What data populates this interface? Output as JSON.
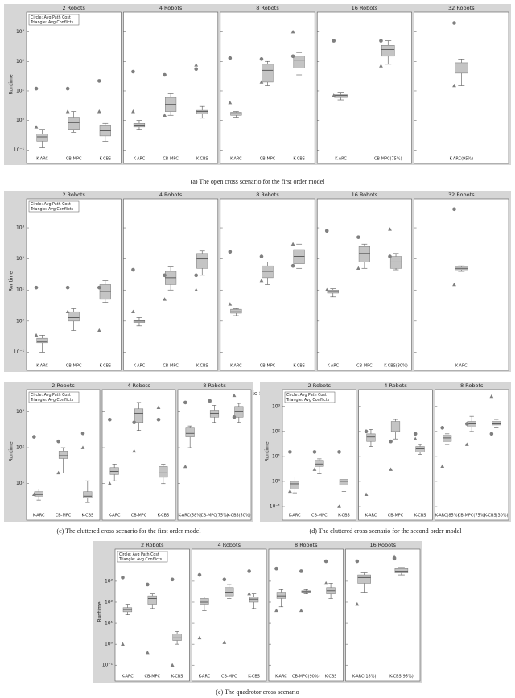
{
  "chart_data": [
    {
      "type": "box",
      "caption": "(a) The open cross scenario for the first order model",
      "ylabel": "Runtime",
      "legend": [
        "Circle: Avg Path Cost",
        "Triangle: Avg Conflicts"
      ],
      "log_scale": true,
      "color": "#c4c4c4",
      "marker_color": "#7f7f7f",
      "ylim": [
        0.085,
        3200
      ],
      "yticks": [
        {
          "value": 0.1,
          "label": "10⁻¹"
        },
        {
          "value": 1,
          "label": "10⁰"
        },
        {
          "value": 10,
          "label": "10¹"
        },
        {
          "value": 100,
          "label": "10²"
        },
        {
          "value": 1000,
          "label": "10³"
        }
      ],
      "panels": [
        {
          "title": "2 Robots",
          "categories": [
            "K-ARC",
            "CB-MPC",
            "K-CBS"
          ],
          "boxes": [
            [
              0.12,
              0.2,
              0.28,
              0.35,
              0.5
            ],
            [
              0.4,
              0.5,
              0.85,
              1.3,
              2
            ],
            [
              0.2,
              0.3,
              0.45,
              0.7,
              0.8
            ]
          ],
          "circles": [
            12,
            12,
            22
          ],
          "triangles": [
            0.6,
            2,
            2
          ]
        },
        {
          "title": "4 Robots",
          "categories": [
            "K-ARC",
            "CB-MPC",
            "K-CBS"
          ],
          "boxes": [
            [
              0.5,
              0.6,
              0.7,
              0.8,
              1
            ],
            [
              1.5,
              2,
              3.5,
              6,
              8
            ],
            [
              1.2,
              1.7,
              2,
              2.2,
              3
            ]
          ],
          "circles": [
            45,
            35,
            55
          ],
          "triangles": [
            2,
            1.5,
            75
          ]
        },
        {
          "title": "8 Robots",
          "categories": [
            "K-ARC",
            "CB-MPC",
            "K-CBS"
          ],
          "boxes": [
            [
              1.3,
              1.5,
              1.7,
              1.9,
              2
            ],
            [
              15,
              20,
              50,
              80,
              100
            ],
            [
              35,
              60,
              110,
              150,
              200
            ]
          ],
          "circles": [
            130,
            120,
            150
          ],
          "triangles": [
            4,
            20,
            1000
          ]
        },
        {
          "title": "16 Robots",
          "categories": [
            "K-ARC",
            "CB-MPC(75%)"
          ],
          "boxes": [
            [
              5,
              6,
              7,
              7.5,
              9
            ],
            [
              80,
              150,
              250,
              350,
              500
            ]
          ],
          "circles": [
            500,
            500
          ],
          "triangles": [
            7,
            70
          ]
        },
        {
          "title": "32 Robots",
          "categories": [
            "K-ARC(95%)"
          ],
          "boxes": [
            [
              15,
              40,
              60,
              90,
              120
            ]
          ],
          "circles": [
            2000
          ],
          "triangles": [
            15
          ]
        }
      ]
    },
    {
      "type": "box",
      "caption": "(b) The open cross scenario for the second order model",
      "ylabel": "Runtime",
      "legend": [
        "Circle: Avg Path Cost",
        "Triangle: Avg Conflicts"
      ],
      "log_scale": true,
      "color": "#c4c4c4",
      "marker_color": "#7f7f7f",
      "ylim": [
        0.06,
        6000
      ],
      "yticks": [
        {
          "value": 0.1,
          "label": "10⁻¹"
        },
        {
          "value": 1,
          "label": "10⁰"
        },
        {
          "value": 10,
          "label": "10¹"
        },
        {
          "value": 100,
          "label": "10²"
        },
        {
          "value": 1000,
          "label": "10³"
        }
      ],
      "panels": [
        {
          "title": "2 Robots",
          "categories": [
            "K-ARC",
            "CB-MPC",
            "K-CBS"
          ],
          "boxes": [
            [
              0.1,
              0.2,
              0.22,
              0.28,
              0.35
            ],
            [
              0.5,
              1,
              1.3,
              2,
              2.5
            ],
            [
              4,
              5,
              9,
              15,
              20
            ]
          ],
          "circles": [
            12,
            12,
            12
          ],
          "triangles": [
            0.35,
            2,
            0.5
          ]
        },
        {
          "title": "4 Robots",
          "categories": [
            "K-ARC",
            "CB-MPC",
            "K-CBS"
          ],
          "boxes": [
            [
              0.7,
              0.9,
              1,
              1.1,
              1.3
            ],
            [
              10,
              15,
              25,
              40,
              55
            ],
            [
              30,
              50,
              100,
              150,
              180
            ]
          ],
          "circles": [
            45,
            30,
            30
          ],
          "triangles": [
            2,
            5,
            10
          ]
        },
        {
          "title": "8 Robots",
          "categories": [
            "K-ARC",
            "CB-MPC",
            "K-CBS"
          ],
          "boxes": [
            [
              1.5,
              1.8,
              2,
              2.4,
              2.5
            ],
            [
              15,
              25,
              40,
              60,
              80
            ],
            [
              50,
              70,
              120,
              200,
              300
            ]
          ],
          "circles": [
            170,
            120,
            60
          ],
          "triangles": [
            3.5,
            20,
            300
          ]
        },
        {
          "title": "16 Robots",
          "categories": [
            "K-ARC",
            "CB-MPC",
            "K-CBS(30%)"
          ],
          "boxes": [
            [
              6,
              8,
              9,
              10,
              11
            ],
            [
              50,
              80,
              150,
              250,
              300
            ],
            [
              45,
              50,
              80,
              120,
              150
            ]
          ],
          "circles": [
            800,
            500,
            120
          ],
          "triangles": [
            10,
            50,
            900
          ]
        },
        {
          "title": "32 Robots",
          "categories": [
            "K-ARC"
          ],
          "boxes": [
            [
              40,
              45,
              50,
              55,
              60
            ]
          ],
          "circles": [
            4000
          ],
          "triangles": [
            15
          ]
        }
      ]
    },
    {
      "type": "box",
      "caption": "(c) The cluttered cross scenario for the first order model",
      "ylabel": "Runtime",
      "legend": [
        "Circle: Avg Path Cost",
        "Triangle: Avg Conflicts"
      ],
      "log_scale": true,
      "color": "#c4c4c4",
      "marker_color": "#7f7f7f",
      "ylim": [
        2,
        3000
      ],
      "yticks": [
        {
          "value": 10,
          "label": "10¹"
        },
        {
          "value": 100,
          "label": "10²"
        },
        {
          "value": 1000,
          "label": "10³"
        }
      ],
      "panels": [
        {
          "title": "2 Robots",
          "categories": [
            "K-ARC",
            "CB-MPC",
            "K-CBS"
          ],
          "boxes": [
            [
              3.5,
              4.5,
              5,
              6,
              7
            ],
            [
              20,
              50,
              60,
              80,
              100
            ],
            [
              3,
              4,
              4.5,
              6,
              12
            ]
          ],
          "circles": [
            200,
            150,
            250
          ],
          "triangles": [
            5,
            20,
            100
          ]
        },
        {
          "title": "4 Robots",
          "categories": [
            "K-ARC",
            "CB-MPC",
            "K-CBS"
          ],
          "boxes": [
            [
              12,
              18,
              22,
              28,
              35
            ],
            [
              300,
              500,
              900,
              1200,
              1800
            ],
            [
              10,
              15,
              20,
              30,
              35
            ]
          ],
          "circles": [
            600,
            500,
            600
          ],
          "triangles": [
            10,
            80,
            1300
          ]
        },
        {
          "title": "8 Robots",
          "categories": [
            "K-ARC(58%)",
            "CB-MPC(75%)",
            "K-CBS(50%)"
          ],
          "boxes": [
            [
              100,
              200,
              250,
              350,
              400
            ],
            [
              500,
              700,
              900,
              1100,
              1500
            ],
            [
              500,
              700,
              1000,
              1400,
              1700
            ]
          ],
          "circles": [
            1800,
            2000,
            700
          ],
          "triangles": [
            30,
            2000,
            2800
          ]
        }
      ]
    },
    {
      "type": "box",
      "caption": "(d) The cluttered cross scenario for the second order model",
      "ylabel": "Runtime",
      "legend": [
        "Circle: Avg Path Cost",
        "Triangle: Avg Conflicts"
      ],
      "log_scale": true,
      "color": "#c4c4c4",
      "marker_color": "#7f7f7f",
      "ylim": [
        0.08,
        3000
      ],
      "yticks": [
        {
          "value": 0.1,
          "label": "10⁻¹"
        },
        {
          "value": 1,
          "label": "10⁰"
        },
        {
          "value": 10,
          "label": "10¹"
        },
        {
          "value": 100,
          "label": "10²"
        },
        {
          "value": 1000,
          "label": "10³"
        }
      ],
      "panels": [
        {
          "title": "2 Robots",
          "categories": [
            "K-ARC",
            "CB-MPC",
            "K-CBS"
          ],
          "boxes": [
            [
              0.35,
              0.5,
              0.8,
              1,
              1.5
            ],
            [
              2,
              4,
              5,
              7,
              8
            ],
            [
              0.4,
              0.7,
              1,
              1.2,
              1.5
            ]
          ],
          "circles": [
            15,
            15,
            15
          ],
          "triangles": [
            0.4,
            3,
            0.1
          ]
        },
        {
          "title": "4 Robots",
          "categories": [
            "K-ARC",
            "CB-MPC",
            "K-CBS"
          ],
          "boxes": [
            [
              25,
              40,
              60,
              80,
              120
            ],
            [
              50,
              100,
              150,
              250,
              300
            ],
            [
              12,
              15,
              20,
              25,
              30
            ]
          ],
          "circles": [
            100,
            40,
            80
          ],
          "triangles": [
            0.3,
            3,
            50
          ]
        },
        {
          "title": "8 Robots",
          "categories": [
            "K-ARC(85%)",
            "CB-MPC(75%)",
            "K-CBS(30%)"
          ],
          "boxes": [
            [
              30,
              40,
              55,
              70,
              80
            ],
            [
              100,
              150,
              200,
              250,
              400
            ],
            [
              140,
              180,
              200,
              250,
              300
            ]
          ],
          "circles": [
            140,
            200,
            80
          ],
          "triangles": [
            4,
            30,
            2500
          ]
        }
      ]
    },
    {
      "type": "box",
      "caption": "(e) The quadrotor cross scenario",
      "ylabel": "Runtime",
      "legend": [
        "Circle: Avg Path Cost",
        "Triangle: Avg Conflicts"
      ],
      "log_scale": true,
      "color": "#c4c4c4",
      "marker_color": "#7f7f7f",
      "ylim": [
        0.06,
        20000
      ],
      "yticks": [
        {
          "value": 0.1,
          "label": "10⁻¹"
        },
        {
          "value": 1,
          "label": "10⁰"
        },
        {
          "value": 10,
          "label": "10¹"
        },
        {
          "value": 100,
          "label": "10²"
        },
        {
          "value": 1000,
          "label": "10³"
        }
      ],
      "panels": [
        {
          "title": "2 Robots",
          "categories": [
            "K-ARC",
            "CB-MPC",
            "K-CBS"
          ],
          "boxes": [
            [
              25,
              35,
              45,
              55,
              80
            ],
            [
              50,
              80,
              150,
              200,
              250
            ],
            [
              1,
              1.5,
              2,
              3,
              4
            ]
          ],
          "circles": [
            1500,
            700,
            1200
          ],
          "triangles": [
            1,
            0.4,
            0.1
          ]
        },
        {
          "title": "4 Robots",
          "categories": [
            "K-ARC",
            "CB-MPC",
            "K-CBS"
          ],
          "boxes": [
            [
              40,
              80,
              100,
              150,
              180
            ],
            [
              150,
              200,
              300,
              500,
              700
            ],
            [
              50,
              100,
              140,
              180,
              250
            ]
          ],
          "circles": [
            2000,
            1200,
            3000
          ],
          "triangles": [
            2,
            1.2,
            250
          ]
        },
        {
          "title": "8 Robots",
          "categories": [
            "K-ARC",
            "CB-MPC(90%)",
            "K-CBS"
          ],
          "boxes": [
            [
              60,
              150,
              200,
              300,
              400
            ],
            [
              250,
              300,
              320,
              350,
              400
            ],
            [
              150,
              250,
              350,
              500,
              800
            ]
          ],
          "circles": [
            4000,
            3000,
            9000
          ],
          "triangles": [
            40,
            40,
            800
          ]
        },
        {
          "title": "16 Robots",
          "categories": [
            "K-ARC(18%)",
            "K-CBS(95%)"
          ],
          "boxes": [
            [
              300,
              800,
              1500,
              2000,
              2500
            ],
            [
              2000,
              2500,
              3000,
              4000,
              4500
            ]
          ],
          "circles": [
            9000,
            12000
          ],
          "triangles": [
            80,
            15000
          ]
        }
      ]
    }
  ]
}
